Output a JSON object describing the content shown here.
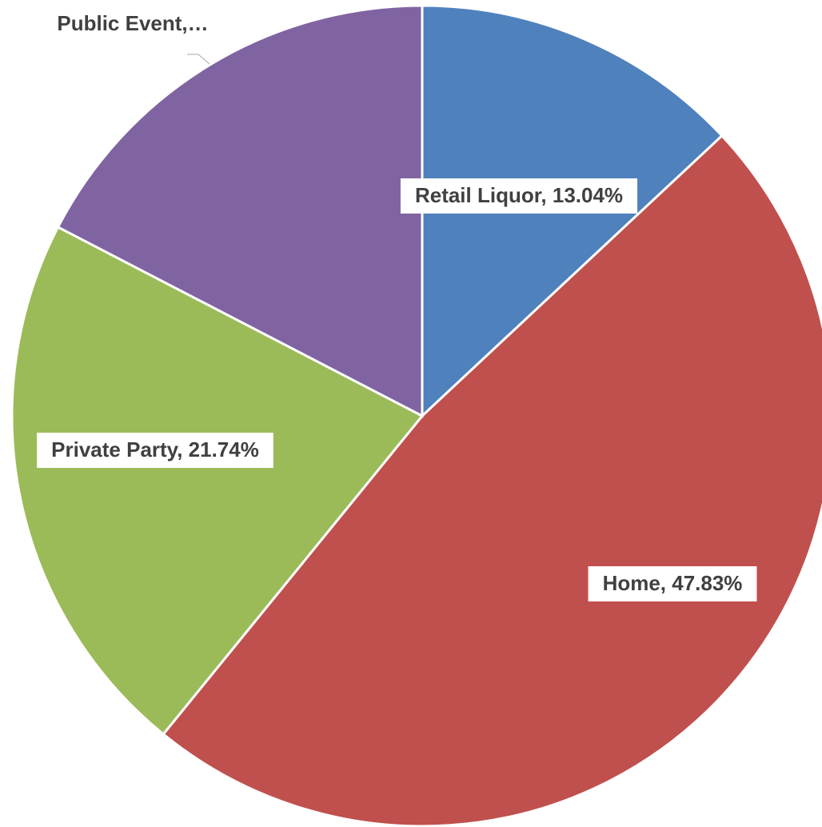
{
  "chart_data": {
    "type": "pie",
    "values": [
      13.04,
      47.83,
      21.74,
      17.39
    ],
    "value_labels": [
      "Retail Liquor, 13.04%",
      "Home, 47.83%",
      "Private Party, 21.74%",
      "Public Event,…"
    ],
    "colors": [
      "#4f81bd",
      "#c0504d",
      "#9bbb59",
      "#8064a2"
    ]
  }
}
